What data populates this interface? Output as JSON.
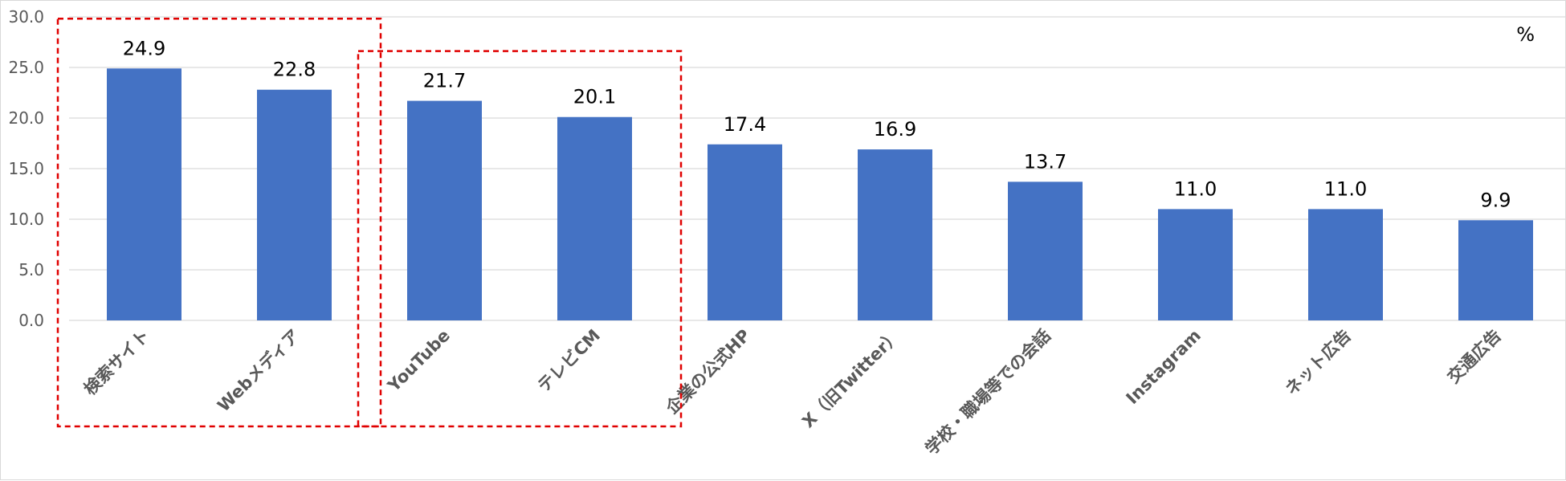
{
  "chart_data": {
    "type": "bar",
    "title": "",
    "xlabel": "",
    "ylabel": "",
    "unit": "%",
    "ylim": [
      0,
      30
    ],
    "yticks": [
      "0.0",
      "5.0",
      "10.0",
      "15.0",
      "20.0",
      "25.0",
      "30.0"
    ],
    "grid": true,
    "bar_color": "#4472C4",
    "highlight_color": "#E00000",
    "categories": [
      "検索サイト",
      "Webメディア",
      "YouTube",
      "テレビCM",
      "企業の公式HP",
      "X（旧Twitter）",
      "学校・職場等での会話",
      "Instagram",
      "ネット広告",
      "交通広告"
    ],
    "values": [
      24.9,
      22.8,
      21.7,
      20.1,
      17.4,
      16.9,
      13.7,
      11.0,
      11.0,
      9.9
    ],
    "value_labels": [
      "24.9",
      "22.8",
      "21.7",
      "20.1",
      "17.4",
      "16.9",
      "13.7",
      "11.0",
      "11.0",
      "9.9"
    ],
    "highlight_groups": [
      [
        0,
        1
      ],
      [
        2,
        3
      ]
    ]
  }
}
